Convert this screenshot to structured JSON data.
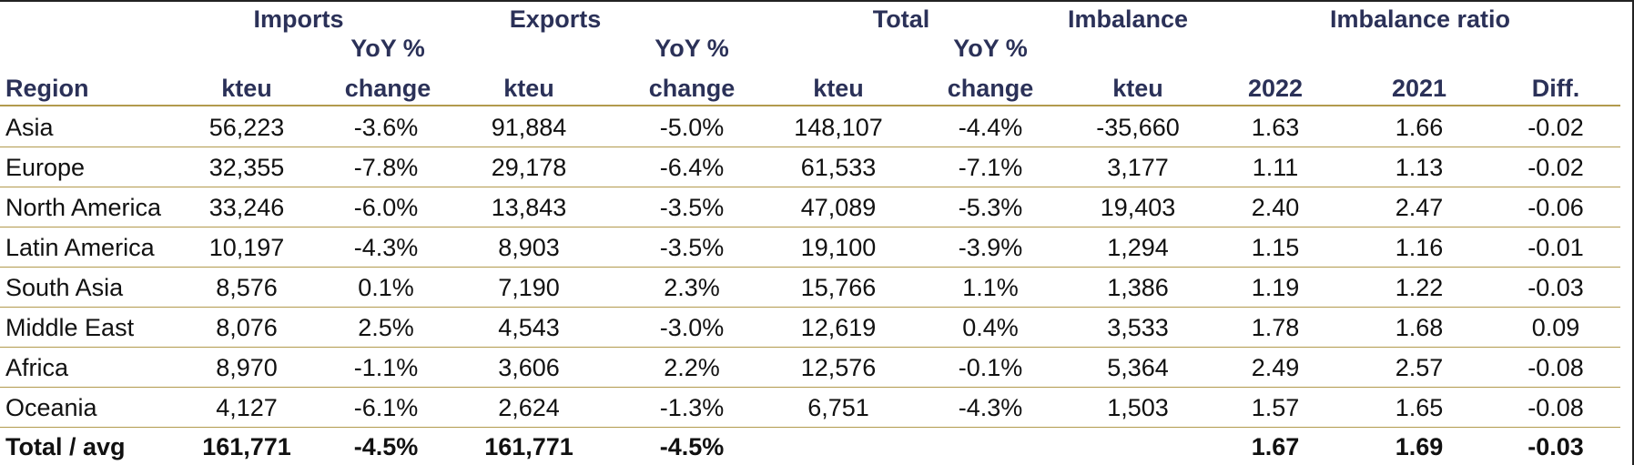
{
  "table": {
    "group_headers": {
      "imports": "Imports",
      "exports": "Exports",
      "total": "Total",
      "imbalance": "Imbalance",
      "imbalance_ratio": "Imbalance ratio"
    },
    "sub_headers": {
      "region": "Region",
      "imports_kteu": "kteu",
      "imports_yoy_1": "YoY %",
      "imports_yoy_2": "change",
      "exports_kteu": "kteu",
      "exports_yoy_1": "YoY %",
      "exports_yoy_2": "change",
      "total_kteu": "kteu",
      "total_yoy_1": "YoY %",
      "total_yoy_2": "change",
      "imbalance_kteu": "kteu",
      "ratio_2022": "2022",
      "ratio_2021": "2021",
      "ratio_diff": "Diff."
    },
    "rows": [
      {
        "region": "Asia",
        "imports_kteu": "56,223",
        "imports_yoy": "-3.6%",
        "exports_kteu": "91,884",
        "exports_yoy": "-5.0%",
        "total_kteu": "148,107",
        "total_yoy": "-4.4%",
        "imbalance_kteu": "-35,660",
        "ratio_2022": "1.63",
        "ratio_2021": "1.66",
        "ratio_diff": "-0.02"
      },
      {
        "region": "Europe",
        "imports_kteu": "32,355",
        "imports_yoy": "-7.8%",
        "exports_kteu": "29,178",
        "exports_yoy": "-6.4%",
        "total_kteu": "61,533",
        "total_yoy": "-7.1%",
        "imbalance_kteu": "3,177",
        "ratio_2022": "1.11",
        "ratio_2021": "1.13",
        "ratio_diff": "-0.02"
      },
      {
        "region": "North America",
        "imports_kteu": "33,246",
        "imports_yoy": "-6.0%",
        "exports_kteu": "13,843",
        "exports_yoy": "-3.5%",
        "total_kteu": "47,089",
        "total_yoy": "-5.3%",
        "imbalance_kteu": "19,403",
        "ratio_2022": "2.40",
        "ratio_2021": "2.47",
        "ratio_diff": "-0.06"
      },
      {
        "region": "Latin America",
        "imports_kteu": "10,197",
        "imports_yoy": "-4.3%",
        "exports_kteu": "8,903",
        "exports_yoy": "-3.5%",
        "total_kteu": "19,100",
        "total_yoy": "-3.9%",
        "imbalance_kteu": "1,294",
        "ratio_2022": "1.15",
        "ratio_2021": "1.16",
        "ratio_diff": "-0.01"
      },
      {
        "region": "South Asia",
        "imports_kteu": "8,576",
        "imports_yoy": "0.1%",
        "exports_kteu": "7,190",
        "exports_yoy": "2.3%",
        "total_kteu": "15,766",
        "total_yoy": "1.1%",
        "imbalance_kteu": "1,386",
        "ratio_2022": "1.19",
        "ratio_2021": "1.22",
        "ratio_diff": "-0.03"
      },
      {
        "region": "Middle East",
        "imports_kteu": "8,076",
        "imports_yoy": "2.5%",
        "exports_kteu": "4,543",
        "exports_yoy": "-3.0%",
        "total_kteu": "12,619",
        "total_yoy": "0.4%",
        "imbalance_kteu": "3,533",
        "ratio_2022": "1.78",
        "ratio_2021": "1.68",
        "ratio_diff": "0.09"
      },
      {
        "region": "Africa",
        "imports_kteu": "8,970",
        "imports_yoy": "-1.1%",
        "exports_kteu": "3,606",
        "exports_yoy": "2.2%",
        "total_kteu": "12,576",
        "total_yoy": "-0.1%",
        "imbalance_kteu": "5,364",
        "ratio_2022": "2.49",
        "ratio_2021": "2.57",
        "ratio_diff": "-0.08"
      },
      {
        "region": "Oceania",
        "imports_kteu": "4,127",
        "imports_yoy": "-6.1%",
        "exports_kteu": "2,624",
        "exports_yoy": "-1.3%",
        "total_kteu": "6,751",
        "total_yoy": "-4.3%",
        "imbalance_kteu": "1,503",
        "ratio_2022": "1.57",
        "ratio_2021": "1.65",
        "ratio_diff": "-0.08"
      }
    ],
    "total_row": {
      "region": "Total / avg",
      "imports_kteu": "161,771",
      "imports_yoy": "-4.5%",
      "exports_kteu": "161,771",
      "exports_yoy": "-4.5%",
      "ratio_2022": "1.67",
      "ratio_2021": "1.69",
      "ratio_diff": "-0.03"
    }
  }
}
